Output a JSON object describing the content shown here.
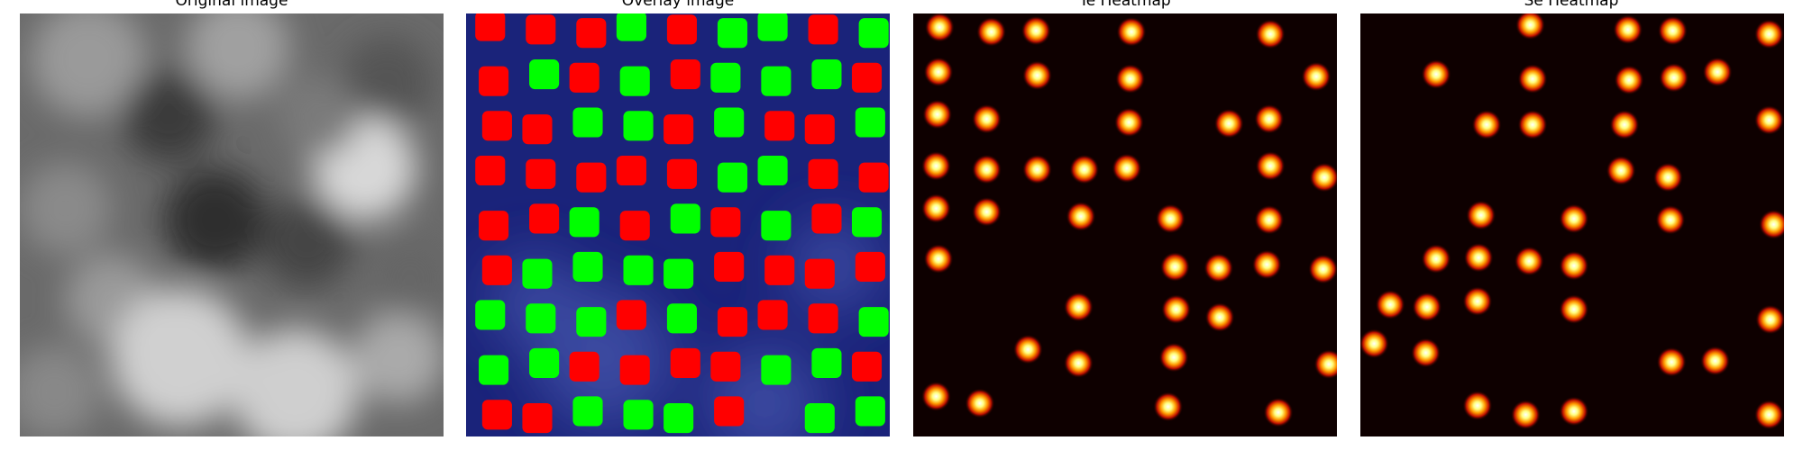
{
  "panels": [
    {
      "title": "Original image"
    },
    {
      "title": "Overlay image"
    },
    {
      "title": "Te Heatmap"
    },
    {
      "title": "Se Heatmap"
    }
  ]
}
